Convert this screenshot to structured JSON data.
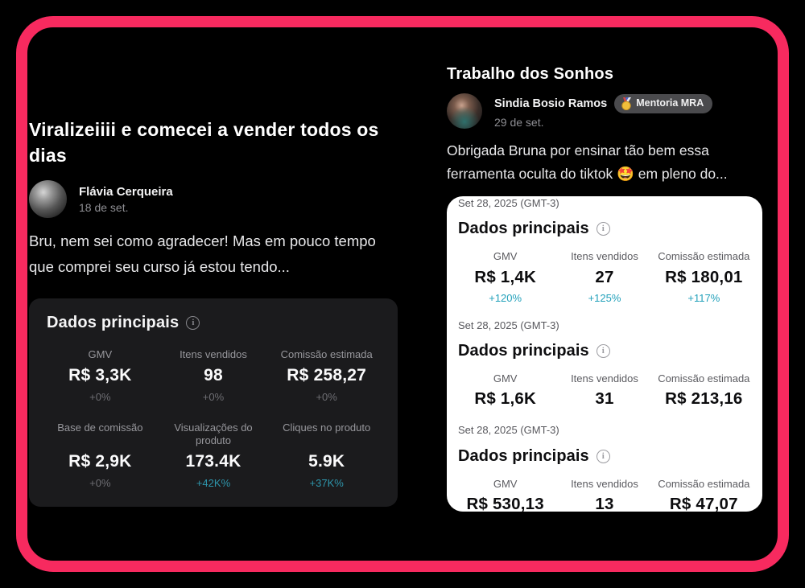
{
  "theme": {
    "border_color": "#F72A5F",
    "positive_delta_color_dark": "#2E96AC",
    "positive_delta_color_light": "#21A0BA"
  },
  "ui": {
    "info_glyph": "i"
  },
  "left_post": {
    "title": "Viralizeiiii e comecei a vender todos os dias",
    "author": "Flávia Cerqueira",
    "date": "18 de set.",
    "body": "Bru, nem sei como agradecer! Mas em pouco tempo que comprei seu curso já estou tendo...",
    "stats_card": {
      "title": "Dados principais",
      "stats": [
        {
          "label": "GMV",
          "value": "R$ 3,3K",
          "delta": "+0%",
          "delta_type": "neutral"
        },
        {
          "label": "Itens vendidos",
          "value": "98",
          "delta": "+0%",
          "delta_type": "neutral"
        },
        {
          "label": "Comissão estimada",
          "value": "R$ 258,27",
          "delta": "+0%",
          "delta_type": "neutral"
        },
        {
          "label": "Base de comissão",
          "value": "R$ 2,9K",
          "delta": "+0%",
          "delta_type": "neutral"
        },
        {
          "label": "Visualizações do produto",
          "value": "173.4K",
          "delta": "+42K%",
          "delta_type": "positive"
        },
        {
          "label": "Cliques no produto",
          "value": "5.9K",
          "delta": "+37K%",
          "delta_type": "positive"
        }
      ]
    }
  },
  "right_post": {
    "title": "Trabalho dos Sonhos",
    "author": "Sindia Bosio Ramos",
    "badge": {
      "icon": "medal",
      "label": "Mentoria MRA"
    },
    "date": "29 de set.",
    "body": "Obrigada Bruna por ensinar tão bem essa ferramenta oculta do tiktok 🤩 em pleno do...",
    "report_card": {
      "sections": [
        {
          "date": "Set 28, 2025 (GMT-3)",
          "title": "Dados principais",
          "stats": [
            {
              "label": "GMV",
              "value": "R$ 1,4K",
              "delta": "+120%"
            },
            {
              "label": "Itens vendidos",
              "value": "27",
              "delta": "+125%"
            },
            {
              "label": "Comissão estimada",
              "value": "R$ 180,01",
              "delta": "+117%"
            }
          ]
        },
        {
          "date": "Set 28, 2025 (GMT-3)",
          "title": "Dados principais",
          "stats": [
            {
              "label": "GMV",
              "value": "R$ 1,6K",
              "delta": ""
            },
            {
              "label": "Itens vendidos",
              "value": "31",
              "delta": ""
            },
            {
              "label": "Comissão estimada",
              "value": "R$ 213,16",
              "delta": ""
            }
          ]
        },
        {
          "date": "Set 28, 2025 (GMT-3)",
          "title": "Dados principais",
          "stats": [
            {
              "label": "GMV",
              "value": "R$ 530,13",
              "delta": ""
            },
            {
              "label": "Itens vendidos",
              "value": "13",
              "delta": ""
            },
            {
              "label": "Comissão estimada",
              "value": "R$ 47,07",
              "delta": ""
            }
          ]
        }
      ]
    }
  }
}
